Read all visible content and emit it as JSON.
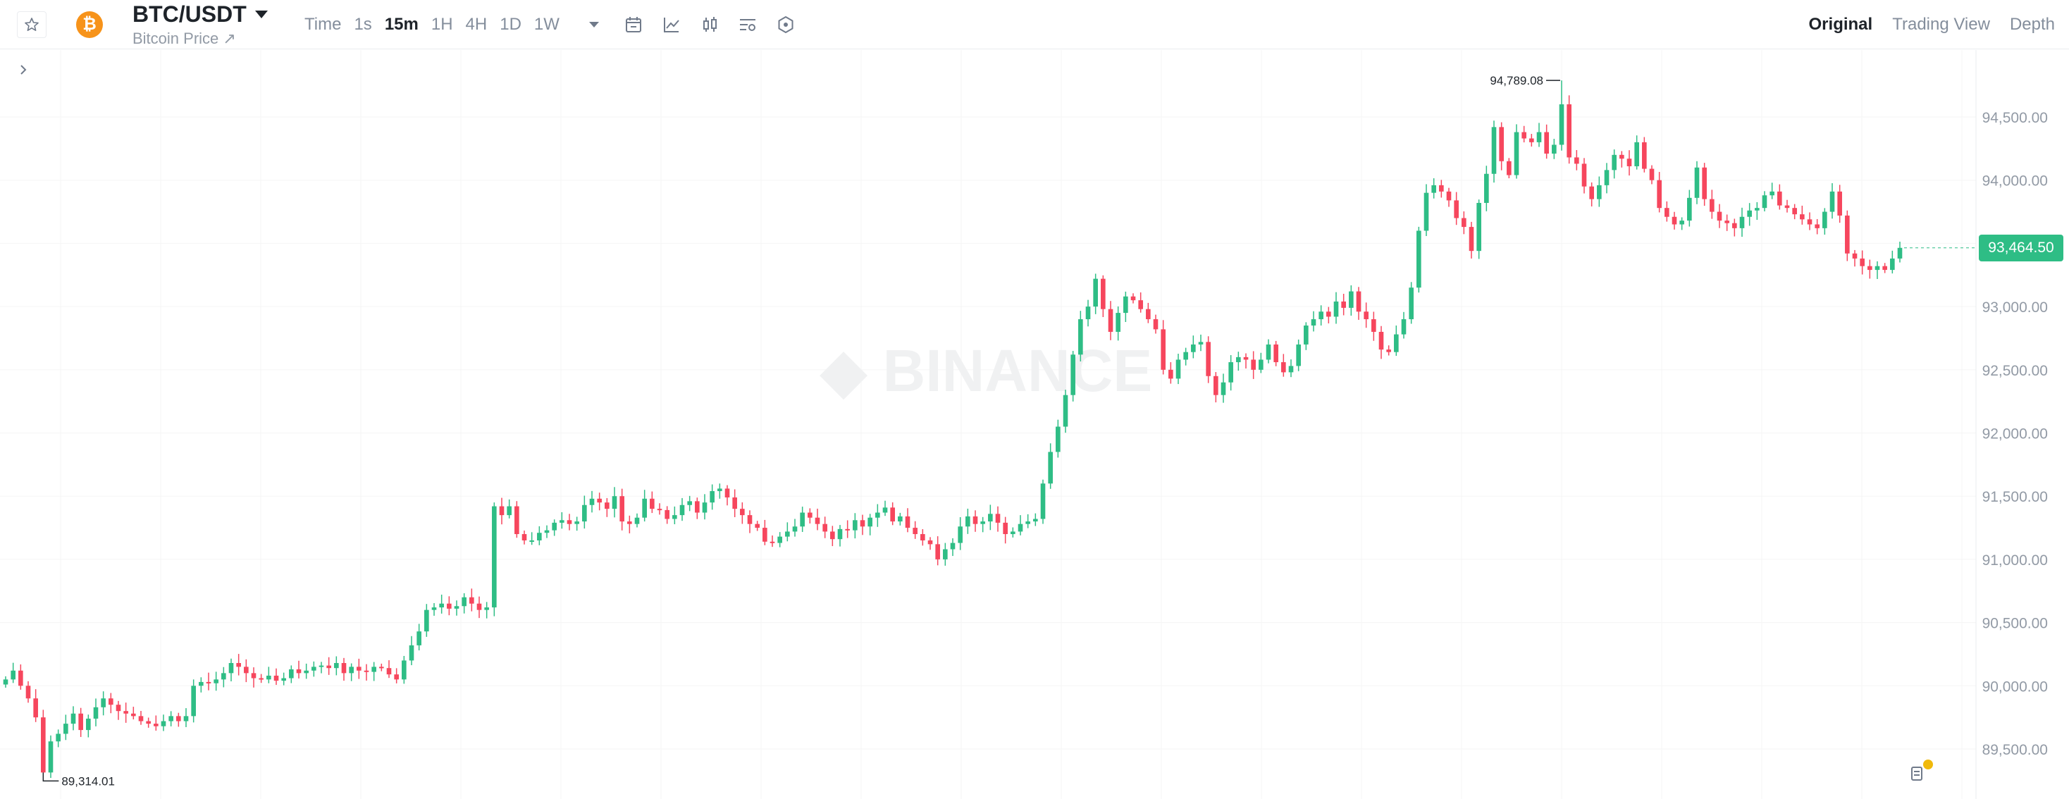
{
  "header": {
    "symbol": "BTC/USDT",
    "subtitle": "Bitcoin Price ↗",
    "coin_icon": "bitcoin-icon",
    "coin_color": "#f7931a",
    "intervals": [
      {
        "label": "Time",
        "active": false
      },
      {
        "label": "1s",
        "active": false
      },
      {
        "label": "15m",
        "active": true
      },
      {
        "label": "1H",
        "active": false
      },
      {
        "label": "4H",
        "active": false
      },
      {
        "label": "1D",
        "active": false
      },
      {
        "label": "1W",
        "active": false
      }
    ],
    "tools": [
      "calendar-icon",
      "indicator-chart-icon",
      "candlestick-type-icon",
      "chart-settings-icon",
      "hexagon-settings-icon"
    ],
    "views": [
      {
        "label": "Original",
        "active": true
      },
      {
        "label": "Trading View",
        "active": false
      },
      {
        "label": "Depth",
        "active": false
      }
    ]
  },
  "colors": {
    "up": "#2ebd85",
    "down": "#f6465d",
    "grid": "#f5f5f5",
    "axis_text": "#929aa5"
  },
  "watermark": "BINANCE",
  "chart_data": {
    "type": "candlestick",
    "interval": "15m",
    "ylim": [
      89000,
      95000
    ],
    "y_ticks": [
      "94,500.00",
      "94,000.00",
      "93,500.00",
      "93,000.00",
      "92,500.00",
      "92,000.00",
      "91,500.00",
      "91,000.00",
      "90,500.00",
      "90,000.00",
      "89,500.00"
    ],
    "y_tick_values": [
      94500,
      94000,
      93500,
      93000,
      92500,
      92000,
      91500,
      91000,
      90500,
      90000,
      89500
    ],
    "last_price": "93,464.50",
    "high_label": "94,789.08",
    "low_label": "89,314.01",
    "high": 94789.08,
    "low": 89314.01,
    "closes": [
      90050,
      90120,
      90000,
      89900,
      89750,
      89314,
      89560,
      89620,
      89700,
      89780,
      89650,
      89740,
      89830,
      89900,
      89850,
      89800,
      89780,
      89760,
      89720,
      89700,
      89680,
      89720,
      89760,
      89720,
      89760,
      90000,
      90030,
      90020,
      90050,
      90100,
      90180,
      90150,
      90100,
      90060,
      90050,
      90080,
      90040,
      90060,
      90130,
      90100,
      90120,
      90150,
      90160,
      90140,
      90180,
      90100,
      90150,
      90120,
      90110,
      90150,
      90140,
      90090,
      90050,
      90200,
      90320,
      90430,
      90600,
      90620,
      90650,
      90610,
      90630,
      90700,
      90650,
      90600,
      90620,
      91420,
      91350,
      91420,
      91200,
      91150,
      91150,
      91210,
      91230,
      91290,
      91310,
      91280,
      91300,
      91430,
      91480,
      91450,
      91400,
      91500,
      91300,
      91280,
      91330,
      91480,
      91400,
      91390,
      91320,
      91350,
      91430,
      91460,
      91370,
      91450,
      91540,
      91560,
      91490,
      91400,
      91350,
      91280,
      91250,
      91140,
      91130,
      91180,
      91220,
      91260,
      91370,
      91330,
      91280,
      91220,
      91160,
      91240,
      91230,
      91310,
      91260,
      91330,
      91370,
      91410,
      91300,
      91340,
      91250,
      91200,
      91150,
      91120,
      91000,
      91080,
      91130,
      91260,
      91340,
      91280,
      91300,
      91360,
      91290,
      91200,
      91220,
      91280,
      91300,
      91320,
      91600,
      91850,
      92050,
      92300,
      92620,
      92900,
      93000,
      93220,
      92980,
      92800,
      92950,
      93080,
      93050,
      92980,
      92900,
      92820,
      92500,
      92430,
      92580,
      92640,
      92700,
      92720,
      92450,
      92300,
      92400,
      92560,
      92600,
      92580,
      92500,
      92580,
      92700,
      92560,
      92480,
      92530,
      92700,
      92850,
      92900,
      92960,
      92920,
      93040,
      92990,
      93120,
      92960,
      92900,
      92800,
      92660,
      92640,
      92780,
      92900,
      93150,
      93600,
      93900,
      93960,
      93910,
      93840,
      93700,
      93630,
      93440,
      93820,
      94050,
      94420,
      94150,
      94040,
      94380,
      94330,
      94300,
      94380,
      94210,
      94280,
      94600,
      94180,
      94130,
      93950,
      93850,
      93960,
      94080,
      94200,
      94170,
      94110,
      94300,
      94090,
      94000,
      93780,
      93710,
      93650,
      93680,
      93860,
      94100,
      93850,
      93750,
      93680,
      93660,
      93620,
      93710,
      93760,
      93780,
      93880,
      93910,
      93800,
      93780,
      93730,
      93690,
      93650,
      93620,
      93750,
      93910,
      93720,
      93420,
      93380,
      93320,
      93290,
      93320,
      93290,
      93380,
      93464.5
    ]
  }
}
